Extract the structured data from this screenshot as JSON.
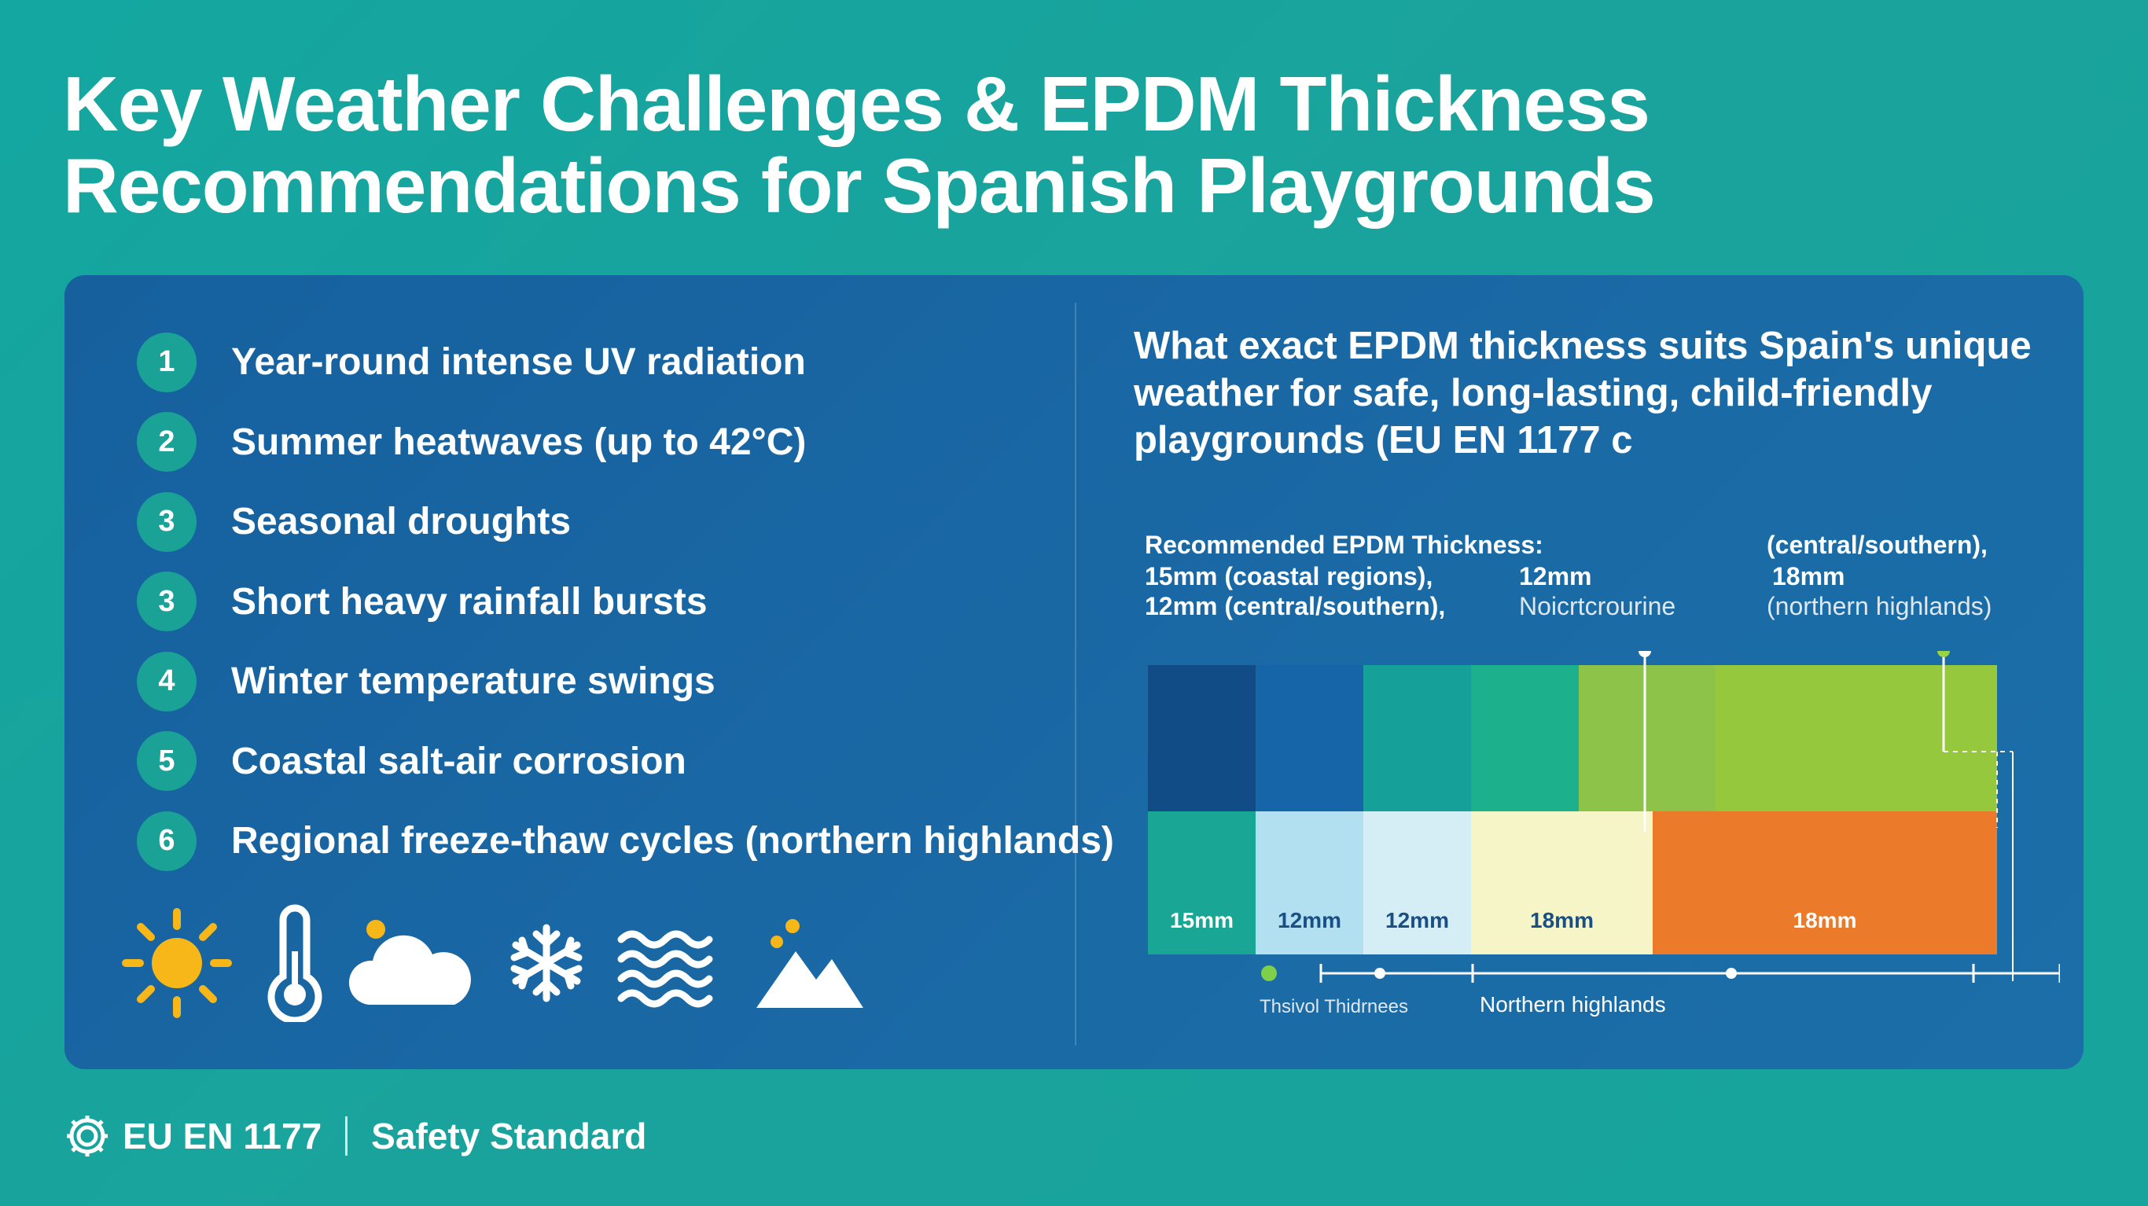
{
  "title": {
    "line1": "Key Weather Challenges & EPDM Thickness",
    "line2": "Recommendations for Spanish Playgrounds"
  },
  "challenges": [
    {
      "num": "1",
      "text": "Year-round intense UV radiation"
    },
    {
      "num": "2",
      "text": "Summer heatwaves (up to 42°C)"
    },
    {
      "num": "3",
      "text": "Seasonal droughts"
    },
    {
      "num": "3",
      "text": "Short heavy rainfall bursts"
    },
    {
      "num": "4",
      "text": "Winter temperature swings"
    },
    {
      "num": "5",
      "text": "Coastal salt-air corrosion"
    },
    {
      "num": "6",
      "text": "Regional freeze-thaw cycles (northern highlands)"
    }
  ],
  "weather_icons": [
    "sun-icon",
    "thermometer-icon",
    "cloud-icon",
    "snowflake-icon",
    "waves-icon",
    "mountain-icon"
  ],
  "question": "What exact EPDM thickness suits Spain's unique weather for safe, long-lasting, child-friendly playgrounds (EU EN 1177 c",
  "chart_labels": {
    "heading": "Recommended EPDM Thickness:",
    "left_line1": "15mm (coastal regions),",
    "left_line2": "12mm (central/southern),",
    "mid_line1": "12mm",
    "mid_line2": "Noicrtcrourine",
    "right_line1": "(central/southern),",
    "right_line2": "18mm",
    "right_line3": "(northern highlands)",
    "axis_left": "Thsivol Thidrnees",
    "axis_right": "Northern highlands"
  },
  "chart_data": {
    "type": "bar",
    "categories": [
      "15mm",
      "12mm",
      "12mm",
      "18mm",
      "18mm"
    ],
    "values": [
      15,
      12,
      12,
      18,
      18
    ],
    "unit": "mm",
    "colors": {
      "top": [
        "#124c86",
        "#1565a8",
        "#16a09a",
        "#1cb08c",
        "#8ec34a",
        "#95c83d"
      ],
      "bottom": [
        "#1aa694",
        "#b3e0f0",
        "#d5eef6",
        "#f6f5c8",
        "#ec7a2b"
      ]
    }
  },
  "footer": {
    "standard": "EU EN 1177",
    "label": "Safety Standard"
  }
}
